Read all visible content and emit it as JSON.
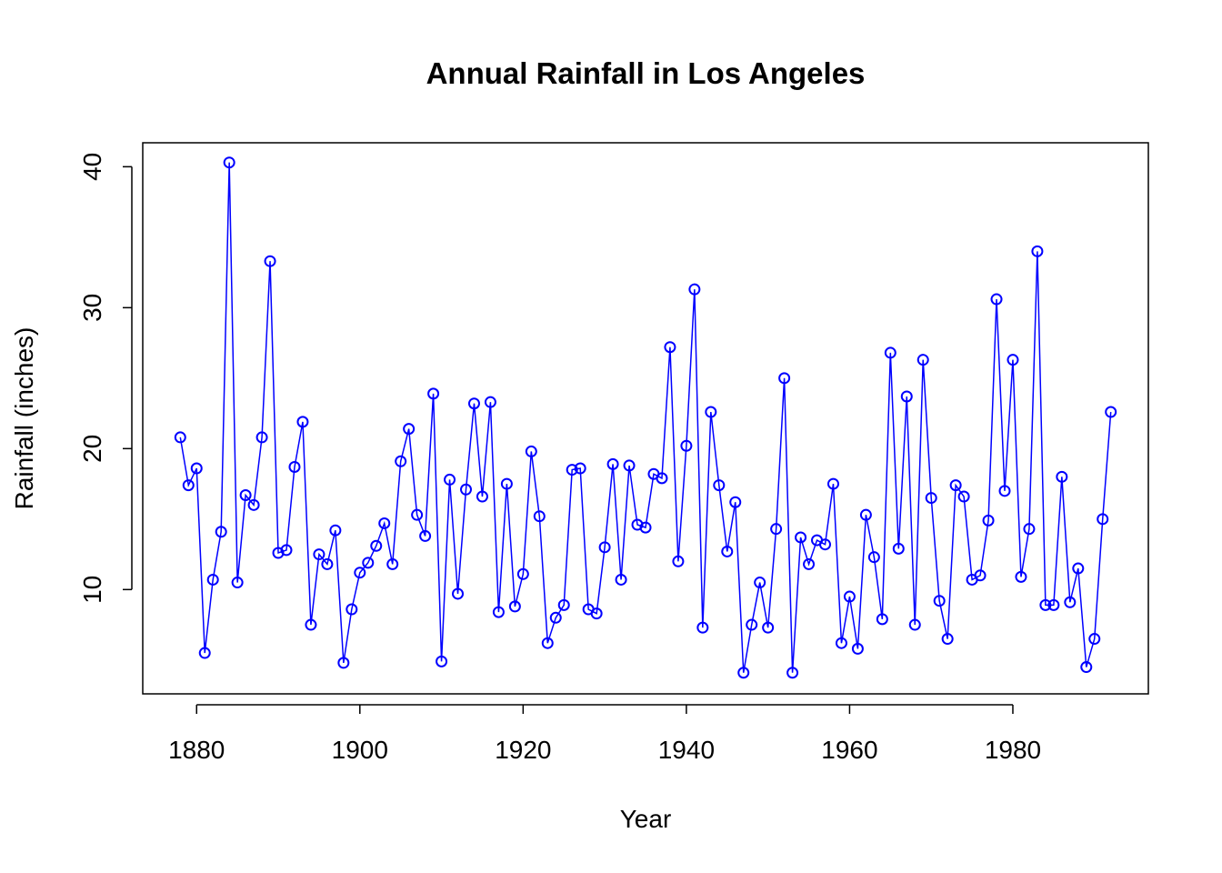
{
  "chart_data": {
    "type": "line",
    "title": "Annual Rainfall in Los Angeles",
    "xlabel": "Year",
    "ylabel": "Rainfall (inches)",
    "xlim": [
      1873.4,
      1996.6
    ],
    "ylim": [
      2.6,
      41.7
    ],
    "x_ticks": [
      1880,
      1900,
      1920,
      1940,
      1960,
      1980
    ],
    "y_ticks": [
      10,
      20,
      30,
      40
    ],
    "grid": false,
    "legend": "none",
    "line_color": "#0000ff",
    "marker": "open-circle",
    "series": [
      {
        "x": [
          1878,
          1879,
          1880,
          1881,
          1882,
          1883,
          1884,
          1885,
          1886,
          1887,
          1888,
          1889,
          1890,
          1891,
          1892,
          1893,
          1894,
          1895,
          1896,
          1897,
          1898,
          1899,
          1900,
          1901,
          1902,
          1903,
          1904,
          1905,
          1906,
          1907,
          1908,
          1909,
          1910,
          1911,
          1912,
          1913,
          1914,
          1915,
          1916,
          1917,
          1918,
          1919,
          1920,
          1921,
          1922,
          1923,
          1924,
          1925,
          1926,
          1927,
          1928,
          1929,
          1930,
          1931,
          1932,
          1933,
          1934,
          1935,
          1936,
          1937,
          1938,
          1939,
          1940,
          1941,
          1942,
          1943,
          1944,
          1945,
          1946,
          1947,
          1948,
          1949,
          1950,
          1951,
          1952,
          1953,
          1954,
          1955,
          1956,
          1957,
          1958,
          1959,
          1960,
          1961,
          1962,
          1963,
          1964,
          1965,
          1966,
          1967,
          1968,
          1969,
          1970,
          1971,
          1972,
          1973,
          1974,
          1975,
          1976,
          1977,
          1978,
          1979,
          1980,
          1981,
          1982,
          1983,
          1984,
          1985,
          1986,
          1987,
          1988,
          1989,
          1990,
          1991,
          1992
        ],
        "values": [
          20.8,
          17.4,
          18.6,
          5.5,
          10.7,
          14.1,
          40.3,
          10.5,
          16.7,
          16.0,
          20.8,
          33.3,
          12.6,
          12.8,
          18.7,
          21.9,
          7.5,
          12.5,
          11.8,
          14.2,
          4.8,
          8.6,
          11.2,
          11.9,
          13.1,
          14.7,
          11.8,
          19.1,
          21.4,
          15.3,
          13.8,
          23.9,
          4.9,
          17.8,
          9.7,
          17.1,
          23.2,
          16.6,
          23.3,
          8.4,
          17.5,
          8.8,
          11.1,
          19.8,
          15.2,
          6.2,
          8.0,
          8.9,
          18.5,
          18.6,
          8.6,
          8.3,
          13.0,
          18.9,
          10.7,
          18.8,
          14.6,
          14.4,
          18.2,
          17.9,
          27.2,
          12.0,
          20.2,
          31.3,
          7.3,
          22.6,
          17.4,
          12.7,
          16.2,
          4.1,
          7.5,
          10.5,
          7.3,
          14.3,
          25.0,
          4.1,
          13.7,
          11.8,
          13.5,
          13.2,
          17.5,
          6.2,
          9.5,
          5.8,
          15.3,
          12.3,
          7.9,
          26.8,
          12.9,
          23.7,
          7.5,
          26.3,
          16.5,
          9.2,
          6.5,
          17.4,
          16.6,
          10.7,
          11.0,
          14.9,
          30.6,
          17.0,
          26.3,
          10.9,
          14.3,
          34.0,
          8.9,
          8.9,
          18.0,
          9.1,
          11.5,
          4.5,
          6.5,
          15.0,
          22.6
        ]
      }
    ]
  }
}
